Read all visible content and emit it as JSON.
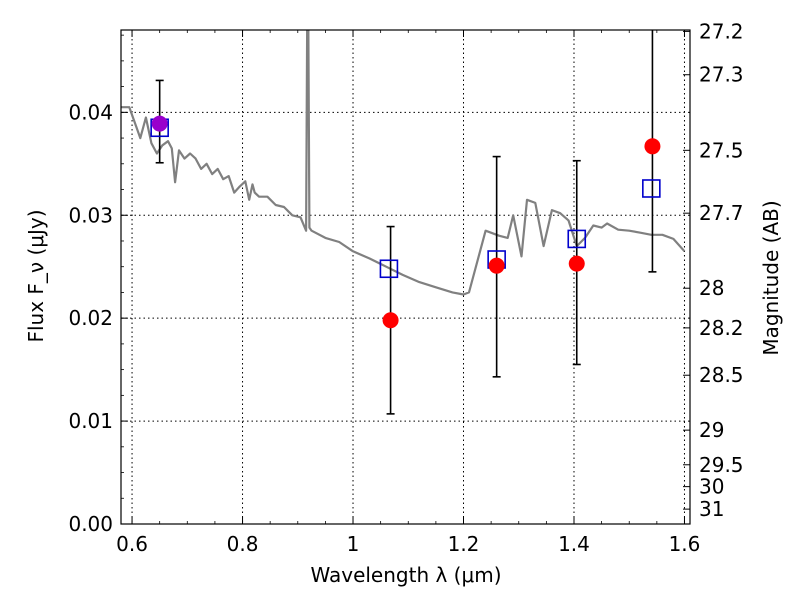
{
  "chart_data": {
    "type": "scatter",
    "xlabel": "Wavelength λ (μm)",
    "ylabel": "Flux F_ν (μJy)",
    "y2label": "Magnitude (AB)",
    "xlim": [
      0.58,
      1.61
    ],
    "ylim": [
      0.0,
      0.048
    ],
    "grid": true,
    "legend": "none",
    "x_ticks": [
      0.6,
      0.8,
      1.0,
      1.2,
      1.4,
      1.6
    ],
    "x_tick_labels": [
      "0.6",
      "0.8",
      "1",
      "1.2",
      "1.4",
      "1.6"
    ],
    "y_ticks": [
      0.0,
      0.01,
      0.02,
      0.03,
      0.04
    ],
    "y_tick_labels": [
      "0.00",
      "0.01",
      "0.02",
      "0.03",
      "0.04"
    ],
    "y2_ticks": [
      27.2,
      27.3,
      27.5,
      27.7,
      28,
      28.2,
      28.5,
      29,
      29.5,
      30,
      31
    ],
    "y2_tick_labels": [
      "27.2",
      "27.3",
      "27.5",
      "27.7",
      "28",
      "28.2",
      "28.5",
      "29",
      "29.5",
      "30",
      "31"
    ],
    "series": [
      {
        "type": "line",
        "color": "#808080",
        "x": [
          0.58,
          0.595,
          0.605,
          0.615,
          0.625,
          0.635,
          0.645,
          0.655,
          0.665,
          0.672,
          0.678,
          0.685,
          0.695,
          0.705,
          0.715,
          0.725,
          0.735,
          0.745,
          0.755,
          0.765,
          0.775,
          0.785,
          0.795,
          0.805,
          0.812,
          0.818,
          0.822,
          0.83,
          0.845,
          0.86,
          0.875,
          0.89,
          0.905,
          0.915,
          0.917,
          0.919,
          0.921,
          0.925,
          0.95,
          0.975,
          1.0,
          1.03,
          1.06,
          1.09,
          1.12,
          1.15,
          1.18,
          1.2,
          1.21,
          1.24,
          1.265,
          1.28,
          1.29,
          1.305,
          1.315,
          1.33,
          1.345,
          1.36,
          1.375,
          1.39,
          1.405,
          1.42,
          1.435,
          1.45,
          1.46,
          1.48,
          1.5,
          1.52,
          1.54,
          1.56,
          1.58,
          1.6
        ],
        "y": [
          0.0405,
          0.0405,
          0.039,
          0.0375,
          0.0395,
          0.037,
          0.036,
          0.0368,
          0.0372,
          0.0365,
          0.0332,
          0.0363,
          0.0355,
          0.036,
          0.0355,
          0.0345,
          0.035,
          0.034,
          0.0345,
          0.0335,
          0.0338,
          0.0322,
          0.0328,
          0.0333,
          0.0315,
          0.033,
          0.0322,
          0.0318,
          0.0318,
          0.031,
          0.0308,
          0.03,
          0.0298,
          0.0285,
          0.049,
          0.049,
          0.0288,
          0.0285,
          0.0278,
          0.0274,
          0.0265,
          0.0258,
          0.025,
          0.0242,
          0.0235,
          0.023,
          0.0225,
          0.0223,
          0.0225,
          0.0285,
          0.028,
          0.0278,
          0.03,
          0.026,
          0.0315,
          0.0312,
          0.027,
          0.0305,
          0.0302,
          0.0295,
          0.027,
          0.0278,
          0.029,
          0.0288,
          0.0292,
          0.0286,
          0.0285,
          0.0283,
          0.0281,
          0.0281,
          0.0277,
          0.0265
        ]
      },
      {
        "type": "scatter",
        "marker": "square-open",
        "color": "#0000cc",
        "x": [
          0.65,
          1.065,
          1.26,
          1.405,
          1.54
        ],
        "y": [
          0.0385,
          0.0248,
          0.0257,
          0.0277,
          0.0326
        ]
      },
      {
        "type": "scatter",
        "marker": "circle",
        "color": "#ff0000",
        "x": [
          1.068,
          1.26,
          1.405,
          1.542
        ],
        "y": [
          0.0198,
          0.0251,
          0.0253,
          0.0367
        ]
      },
      {
        "type": "scatter",
        "marker": "circle",
        "color": "#9900cc",
        "x": [
          0.65
        ],
        "y": [
          0.0389
        ]
      },
      {
        "type": "errorbar",
        "color": "#000000",
        "x": [
          0.65,
          1.068,
          1.26,
          1.405,
          1.542
        ],
        "y": [
          0.0389,
          0.0198,
          0.0251,
          0.0253,
          0.0367
        ],
        "lower": [
          0.0351,
          0.0107,
          0.0143,
          0.0155,
          0.0245
        ],
        "upper": [
          0.0431,
          0.0289,
          0.0357,
          0.0353,
          0.049
        ]
      }
    ]
  }
}
